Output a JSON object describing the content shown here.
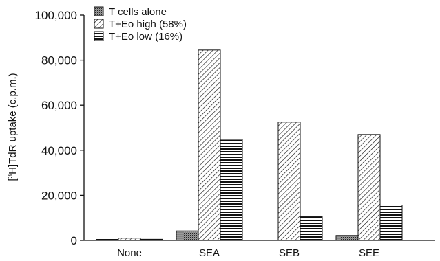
{
  "chart_data": {
    "type": "bar",
    "categories": [
      "None",
      "SEA",
      "SEB",
      "SEE"
    ],
    "series": [
      {
        "name": "T cells alone",
        "values": [
          300,
          4200,
          0,
          2200
        ],
        "pattern": "dotted-gray"
      },
      {
        "name": "T+Eo high (58%)",
        "values": [
          1000,
          84500,
          52500,
          47000
        ],
        "pattern": "diagonal-hatch"
      },
      {
        "name": "T+Eo low (16%)",
        "values": [
          500,
          44800,
          10500,
          15700
        ],
        "pattern": "horizontal-lines"
      }
    ],
    "ylabel_pre": "[",
    "ylabel_sup": "3",
    "ylabel_post": "H]TdR uptake (c.p.m.)",
    "xlabel": "",
    "title": "",
    "ylim": [
      0,
      100000
    ],
    "yticks": [
      0,
      20000,
      40000,
      60000,
      80000,
      100000
    ],
    "ytick_labels": [
      "0",
      "20,000",
      "40,000",
      "60,000",
      "80,000",
      "100,000"
    ],
    "legend_position": "top-left",
    "grid": false
  }
}
